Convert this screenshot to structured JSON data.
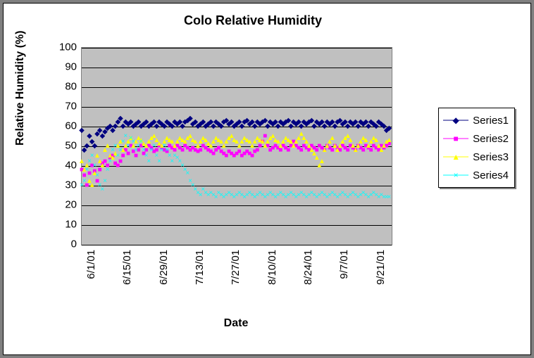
{
  "chart": {
    "type": "line",
    "title": "Colo Relative Humidity",
    "title_fontsize": 18,
    "title_fontweight": "bold",
    "background_color": "#ffffff",
    "outer_border_color": "#808080",
    "inner_border_color": "#000000",
    "plot_background": "#c0c0c0",
    "grid_color": "#000000",
    "xlabel": "Date",
    "ylabel": "Relative Humidity (%)",
    "axis_label_fontsize": 16,
    "axis_label_fontweight": "bold",
    "tick_fontsize": 15,
    "ylim": [
      0,
      100
    ],
    "ytick_step": 10,
    "xticks": [
      "6/1/01",
      "6/15/01",
      "6/29/01",
      "7/13/01",
      "7/27/01",
      "8/10/01",
      "8/24/01",
      "9/7/01",
      "9/21/01"
    ],
    "xtick_rotation": -90,
    "xindex_max": 120,
    "legend": {
      "position": "right",
      "border_color": "#000000",
      "background": "#ffffff",
      "shadow_color": "#808080",
      "fontsize": 15,
      "items": [
        {
          "label": "Series1",
          "color": "#000080",
          "marker": "diamond"
        },
        {
          "label": "Series2",
          "color": "#ff00ff",
          "marker": "square"
        },
        {
          "label": "Series3",
          "color": "#ffff00",
          "marker": "triangle"
        },
        {
          "label": "Series4",
          "color": "#00ffff",
          "marker": "x"
        }
      ]
    },
    "series": [
      {
        "name": "Series1",
        "color": "#000080",
        "marker": "diamond",
        "values": [
          58,
          48,
          50,
          55,
          52,
          50,
          56,
          58,
          55,
          57,
          59,
          60,
          58,
          60,
          62,
          64,
          60,
          62,
          61,
          62,
          60,
          61,
          62,
          60,
          61,
          62,
          60,
          61,
          62,
          60,
          62,
          61,
          60,
          62,
          61,
          60,
          62,
          61,
          62,
          60,
          62,
          63,
          64,
          61,
          62,
          60,
          61,
          62,
          60,
          61,
          62,
          60,
          62,
          61,
          60,
          62,
          63,
          61,
          62,
          60,
          61,
          62,
          60,
          62,
          63,
          61,
          62,
          60,
          62,
          61,
          62,
          63,
          60,
          62,
          61,
          62,
          60,
          62,
          61,
          62,
          63,
          60,
          62,
          61,
          62,
          60,
          62,
          61,
          62,
          63,
          60,
          62,
          61,
          62,
          60,
          62,
          61,
          62,
          60,
          62,
          63,
          61,
          62,
          60,
          62,
          61,
          62,
          60,
          62,
          61,
          62,
          60,
          62,
          61,
          60,
          62,
          61,
          60,
          58,
          59
        ]
      },
      {
        "name": "Series2",
        "color": "#ff00ff",
        "marker": "square",
        "values": [
          38,
          35,
          30,
          36,
          40,
          37,
          32,
          38,
          41,
          42,
          40,
          44,
          45,
          41,
          40,
          42,
          45,
          48,
          46,
          50,
          47,
          45,
          48,
          50,
          46,
          48,
          50,
          49,
          47,
          48,
          50,
          49,
          48,
          47,
          50,
          49,
          48,
          50,
          49,
          48,
          50,
          49,
          48,
          49,
          48,
          47,
          48,
          50,
          49,
          48,
          47,
          46,
          48,
          49,
          47,
          46,
          45,
          47,
          46,
          45,
          46,
          47,
          45,
          46,
          47,
          46,
          45,
          47,
          48,
          50,
          52,
          55,
          50,
          48,
          49,
          50,
          49,
          48,
          50,
          49,
          48,
          50,
          52,
          50,
          49,
          48,
          50,
          49,
          48,
          50,
          49,
          48,
          50,
          49,
          48,
          50,
          49,
          48,
          50,
          49,
          48,
          50,
          49,
          48,
          50,
          49,
          48,
          50,
          49,
          48,
          50,
          49,
          48,
          50,
          49,
          48,
          50,
          49,
          50,
          51
        ]
      },
      {
        "name": "Series3",
        "color": "#ffff00",
        "marker": "triangle",
        "values": [
          42,
          38,
          40,
          32,
          30,
          36,
          45,
          42,
          40,
          48,
          50,
          45,
          44,
          46,
          50,
          52,
          48,
          50,
          52,
          54,
          50,
          52,
          54,
          53,
          51,
          50,
          52,
          54,
          55,
          53,
          51,
          50,
          52,
          54,
          53,
          52,
          50,
          52,
          54,
          53,
          52,
          54,
          55,
          53,
          52,
          50,
          52,
          54,
          53,
          51,
          50,
          52,
          54,
          53,
          52,
          50,
          52,
          54,
          55,
          53,
          52,
          50,
          52,
          54,
          53,
          52,
          50,
          52,
          54,
          53,
          52,
          50,
          52,
          54,
          55,
          53,
          52,
          50,
          52,
          54,
          53,
          52,
          50,
          52,
          54,
          56,
          54,
          52,
          50,
          48,
          46,
          44,
          40,
          42,
          48,
          50,
          52,
          54,
          50,
          48,
          50,
          52,
          54,
          55,
          53,
          50,
          48,
          50,
          52,
          54,
          53,
          50,
          52,
          54,
          53,
          50,
          48,
          50,
          52,
          53
        ]
      },
      {
        "name": "Series4",
        "color": "#00ffff",
        "marker": "x",
        "values": [
          30,
          32,
          38,
          42,
          45,
          40,
          35,
          30,
          28,
          32,
          38,
          42,
          48,
          50,
          45,
          48,
          52,
          55,
          50,
          54,
          52,
          48,
          50,
          52,
          48,
          45,
          42,
          48,
          50,
          45,
          42,
          48,
          50,
          48,
          45,
          42,
          45,
          44,
          42,
          40,
          38,
          36,
          32,
          30,
          28,
          26,
          25,
          28,
          26,
          25,
          26,
          25,
          24,
          26,
          25,
          24,
          25,
          26,
          25,
          24,
          25,
          26,
          25,
          24,
          25,
          26,
          25,
          24,
          25,
          26,
          25,
          24,
          25,
          26,
          25,
          24,
          25,
          26,
          25,
          24,
          25,
          26,
          25,
          24,
          25,
          26,
          25,
          24,
          25,
          26,
          25,
          24,
          25,
          26,
          25,
          24,
          25,
          26,
          25,
          24,
          25,
          26,
          25,
          24,
          25,
          26,
          25,
          24,
          25,
          26,
          25,
          24,
          25,
          26,
          25,
          24,
          25,
          24,
          24,
          24
        ]
      }
    ]
  }
}
